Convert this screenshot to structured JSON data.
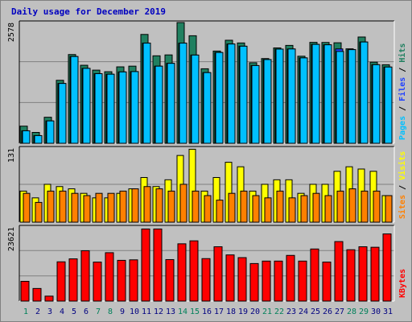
{
  "chart_data": [
    {
      "type": "bar",
      "title": "Daily usage for December 2019",
      "ylabel_max": "2578",
      "legend": [
        {
          "text": "Pages",
          "color": "#00c0ff"
        },
        {
          "text": "Files",
          "color": "#2040ff"
        },
        {
          "text": "Hits",
          "color": "#208060"
        }
      ],
      "categories": [
        "1",
        "2",
        "3",
        "4",
        "5",
        "6",
        "7",
        "8",
        "9",
        "10",
        "11",
        "12",
        "13",
        "14",
        "15",
        "16",
        "17",
        "18",
        "19",
        "20",
        "21",
        "22",
        "23",
        "24",
        "25",
        "26",
        "27",
        "28",
        "29",
        "30",
        "31"
      ],
      "weekend_days": [
        "1",
        "7",
        "8",
        "14",
        "15",
        "21",
        "22",
        "28",
        "29"
      ],
      "ylim": [
        0,
        2578
      ],
      "series": [
        {
          "name": "Hits",
          "color": "#208060",
          "values": [
            366,
            232,
            556,
            1345,
            1895,
            1666,
            1562,
            1528,
            1632,
            1647,
            2324,
            1868,
            1887,
            2578,
            2296,
            1591,
            1969,
            2200,
            2142,
            1720,
            1809,
            2036,
            2090,
            1859,
            2155,
            2153,
            2146,
            2017,
            2269,
            1732,
            1677
          ]
        },
        {
          "name": "Files",
          "color": "#2040ff",
          "values": [
            267,
            164,
            478,
            1278,
            1853,
            1600,
            1487,
            1475,
            1524,
            1531,
            2139,
            1647,
            1707,
            2139,
            1884,
            1509,
            1939,
            2120,
            2073,
            1660,
            1788,
            2011,
            2014,
            1824,
            2112,
            2103,
            2015,
            2000,
            2163,
            1678,
            1628
          ]
        },
        {
          "name": "Pages",
          "color": "#00c0ff",
          "values": [
            267,
            164,
            478,
            1278,
            1853,
            1600,
            1487,
            1475,
            1524,
            1531,
            2139,
            1647,
            1707,
            2139,
            1884,
            1509,
            1939,
            2120,
            2073,
            1660,
            1788,
            2011,
            2014,
            1824,
            2112,
            2103,
            1961,
            2000,
            2163,
            1678,
            1628
          ]
        }
      ]
    },
    {
      "type": "bar",
      "ylabel_max": "131",
      "legend": [
        {
          "text": "Sites",
          "color": "#ff8000"
        },
        {
          "text": "Visits",
          "color": "#ffff00"
        }
      ],
      "categories": [
        "1",
        "2",
        "3",
        "4",
        "5",
        "6",
        "7",
        "8",
        "9",
        "10",
        "11",
        "12",
        "13",
        "14",
        "15",
        "16",
        "17",
        "18",
        "19",
        "20",
        "21",
        "22",
        "23",
        "24",
        "25",
        "26",
        "27",
        "28",
        "29",
        "30",
        "31"
      ],
      "ylim": [
        0,
        131
      ],
      "series": [
        {
          "name": "Visits",
          "color": "#ffff00",
          "values": [
            55,
            43,
            67,
            63,
            59,
            51,
            43,
            43,
            51,
            59,
            79,
            63,
            75,
            118,
            129,
            55,
            79,
            106,
            98,
            55,
            67,
            75,
            75,
            51,
            67,
            67,
            90,
            98,
            94,
            90,
            47
          ]
        },
        {
          "name": "Sites",
          "color": "#ff8000",
          "values": [
            51,
            35,
            55,
            55,
            51,
            47,
            51,
            51,
            55,
            59,
            63,
            59,
            55,
            67,
            55,
            47,
            39,
            51,
            55,
            47,
            43,
            55,
            43,
            47,
            51,
            47,
            55,
            59,
            55,
            55,
            47
          ]
        }
      ]
    },
    {
      "type": "bar",
      "ylabel_max": "23621",
      "legend": [
        {
          "text": "KBytes",
          "color": "#ff0000"
        }
      ],
      "categories": [
        "1",
        "2",
        "3",
        "4",
        "5",
        "6",
        "7",
        "8",
        "9",
        "10",
        "11",
        "12",
        "13",
        "14",
        "15",
        "16",
        "17",
        "18",
        "19",
        "20",
        "21",
        "22",
        "23",
        "24",
        "25",
        "26",
        "27",
        "28",
        "29",
        "30",
        "31"
      ],
      "ylim": [
        0,
        23621
      ],
      "series": [
        {
          "name": "KBytes",
          "color": "#ff0000",
          "values": [
            6298,
            4015,
            1575,
            12519,
            13464,
            16060,
            12440,
            15430,
            12991,
            13149,
            22991,
            22991,
            13228,
            18267,
            19212,
            13543,
            17322,
            14724,
            13858,
            11968,
            12755,
            12755,
            14566,
            12755,
            16612,
            12440,
            18976,
            16375,
            17322,
            17164,
            21416
          ]
        }
      ]
    }
  ]
}
